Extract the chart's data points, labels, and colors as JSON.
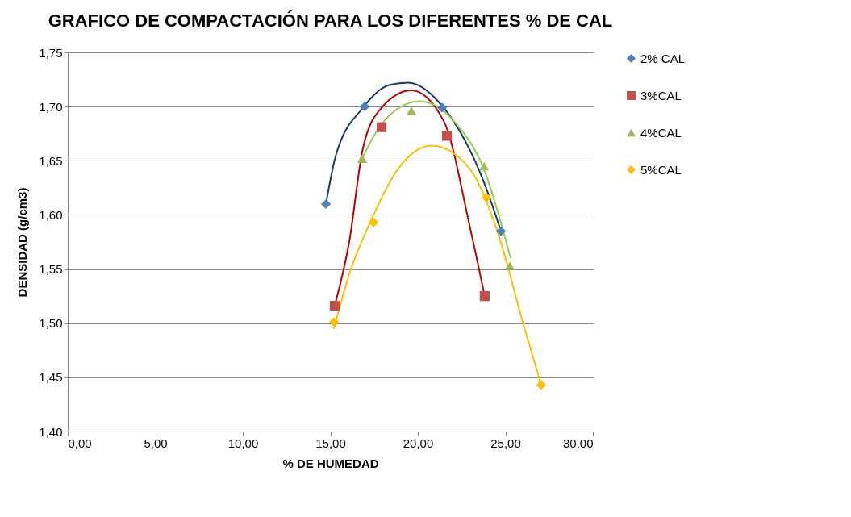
{
  "chart_data": {
    "type": "scatter",
    "title": "GRAFICO DE COMPACTACIÓN PARA LOS DIFERENTES % DE CAL",
    "xlabel": "% DE HUMEDAD",
    "ylabel": "DENSIDAD (g/cm3)",
    "xlim": [
      0,
      30
    ],
    "xticks": [
      {
        "value": 0,
        "label": "0,00"
      },
      {
        "value": 5,
        "label": "5,00"
      },
      {
        "value": 10,
        "label": "10,00"
      },
      {
        "value": 15,
        "label": "15,00"
      },
      {
        "value": 20,
        "label": "20,00"
      },
      {
        "value": 25,
        "label": "25,00"
      },
      {
        "value": 30,
        "label": "30,00"
      }
    ],
    "ylim": [
      1.4,
      1.75
    ],
    "yticks": [
      {
        "value": 1.4,
        "label": "1,40"
      },
      {
        "value": 1.45,
        "label": "1,45"
      },
      {
        "value": 1.5,
        "label": "1,50"
      },
      {
        "value": 1.55,
        "label": "1,55"
      },
      {
        "value": 1.6,
        "label": "1,60"
      },
      {
        "value": 1.65,
        "label": "1,65"
      },
      {
        "value": 1.7,
        "label": "1,70"
      },
      {
        "value": 1.75,
        "label": "1,75"
      }
    ],
    "grid": "y",
    "legend": "right",
    "series": [
      {
        "type": "line",
        "color": "#1f3864",
        "x": [
          14.75,
          15.3,
          16.87,
          18.39,
          19.45,
          21.47,
          23.78,
          24.75
        ],
        "values": [
          1.61,
          1.654,
          1.699,
          1.72,
          1.722,
          1.699,
          1.63,
          1.585
        ]
      },
      {
        "type": "line",
        "color": "#c00000",
        "x": [
          15.25,
          16.08,
          16.87,
          17.93,
          19.63,
          21.47,
          23.0,
          23.82
        ],
        "values": [
          1.516,
          1.575,
          1.662,
          1.699,
          1.715,
          1.687,
          1.587,
          1.525
        ]
      },
      {
        "type": "line",
        "color": "#92d050",
        "x": [
          16.82,
          17.93,
          20.09,
          22.2,
          23.78,
          25.3
        ],
        "values": [
          1.652,
          1.684,
          1.705,
          1.684,
          1.642,
          1.56
        ]
      },
      {
        "type": "line",
        "color": "#ffc000",
        "x": [
          15.21,
          16.08,
          17.33,
          18.85,
          20.78,
          23.0,
          24.5,
          26.1,
          27.05
        ],
        "values": [
          1.495,
          1.545,
          1.595,
          1.642,
          1.664,
          1.642,
          1.587,
          1.495,
          1.443
        ]
      },
      {
        "type": "scatter",
        "name": "2% CAL",
        "color": "#4f81bd",
        "marker": "diamond",
        "x": [
          14.75,
          16.96,
          21.38,
          24.75
        ],
        "values": [
          1.61,
          1.7,
          1.699,
          1.585
        ]
      },
      {
        "type": "scatter",
        "name": "3%CAL",
        "color": "#c0504d",
        "marker": "square",
        "x": [
          15.25,
          17.93,
          21.66,
          23.82
        ],
        "values": [
          1.516,
          1.681,
          1.673,
          1.525
        ]
      },
      {
        "type": "scatter",
        "name": "4%CAL",
        "color": "#9bbb59",
        "marker": "triangle",
        "x": [
          16.82,
          19.63,
          23.78,
          25.25
        ],
        "values": [
          1.652,
          1.696,
          1.645,
          1.553
        ]
      },
      {
        "type": "scatter",
        "name": "5%CAL",
        "color": "#ffc000",
        "marker": "diamond",
        "x": [
          15.21,
          17.47,
          23.92,
          27.05
        ],
        "values": [
          1.501,
          1.593,
          1.616,
          1.443
        ]
      }
    ]
  }
}
